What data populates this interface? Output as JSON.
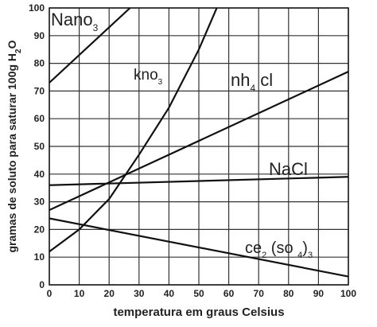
{
  "chart_data": {
    "type": "line",
    "y_label_parts": [
      {
        "text": "gramas de soluto para saturar 100g H",
        "sub": false
      },
      {
        "text": "2",
        "sub": true
      },
      {
        "text": "O",
        "sub": false
      }
    ],
    "x_label": "temperatura em graus Celsius",
    "xlim": [
      0,
      100
    ],
    "ylim": [
      0,
      100
    ],
    "xticks": [
      0,
      10,
      20,
      30,
      40,
      50,
      60,
      70,
      80,
      90,
      100
    ],
    "yticks": [
      0,
      10,
      20,
      30,
      40,
      50,
      60,
      70,
      80,
      90,
      100
    ],
    "grid": true,
    "series": [
      {
        "label_parts": [
          {
            "text": "Nano",
            "sub": false
          },
          {
            "text": "3",
            "sub": true
          }
        ],
        "color": "#111111",
        "x": [
          0,
          27
        ],
        "values": [
          73,
          100
        ]
      },
      {
        "label_parts": [
          {
            "text": "kno",
            "sub": false
          },
          {
            "text": "3",
            "sub": true
          }
        ],
        "color": "#111111",
        "x": [
          0,
          10,
          20,
          30,
          40,
          50,
          56
        ],
        "values": [
          12,
          20,
          31,
          47,
          64,
          85,
          100
        ]
      },
      {
        "label_parts": [
          {
            "text": "nh",
            "sub": false
          },
          {
            "text": "4",
            "sub": true
          },
          {
            "text": " cl",
            "sub": false
          }
        ],
        "color": "#111111",
        "x": [
          0,
          100
        ],
        "values": [
          27,
          77
        ]
      },
      {
        "label_parts": [
          {
            "text": "NaCl",
            "sub": false
          }
        ],
        "color": "#111111",
        "x": [
          0,
          100
        ],
        "values": [
          36,
          39
        ]
      },
      {
        "label_parts": [
          {
            "text": "ce",
            "sub": false
          },
          {
            "text": "2",
            "sub": true
          },
          {
            "text": " (so ",
            "sub": false
          },
          {
            "text": "4",
            "sub": true
          },
          {
            "text": ")",
            "sub": false
          },
          {
            "text": "3",
            "sub": true
          }
        ],
        "color": "#111111",
        "x": [
          0,
          100
        ],
        "values": [
          24,
          3
        ]
      }
    ]
  }
}
